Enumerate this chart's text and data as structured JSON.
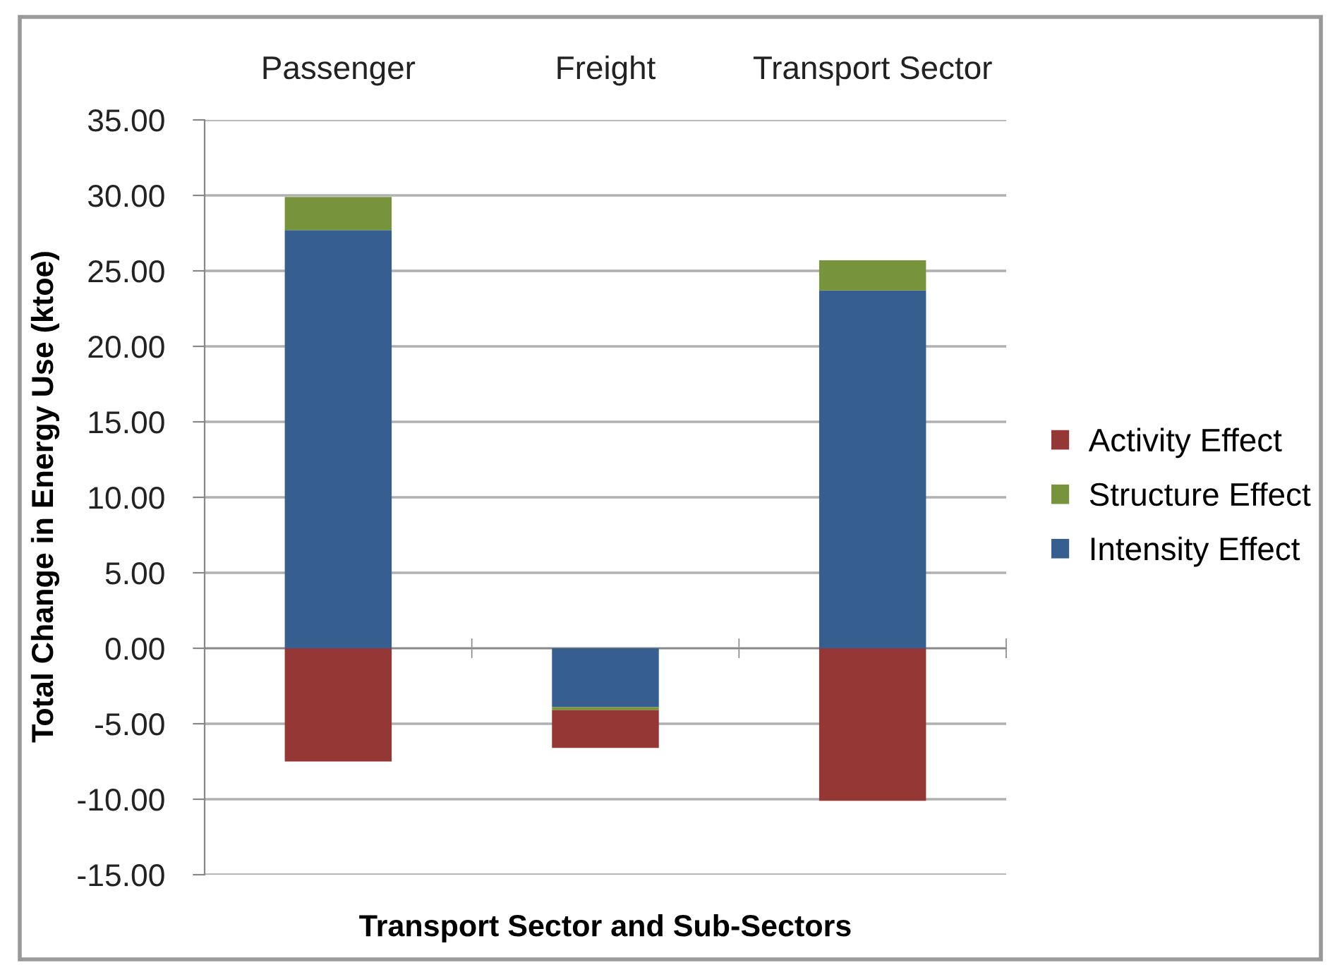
{
  "chart_data": {
    "type": "bar",
    "stacked": true,
    "xlabel": "Transport Sector and Sub-Sectors",
    "ylabel": "Total Change in Energy Use (ktoe)",
    "categories": [
      "Passenger",
      "Freight",
      "Transport Sector"
    ],
    "series": [
      {
        "name": "Intensity Effect",
        "color": "#365e8f",
        "values": [
          27.7,
          -3.9,
          23.7
        ]
      },
      {
        "name": "Structure Effect",
        "color": "#77933c",
        "values": [
          2.2,
          -0.2,
          2.0
        ]
      },
      {
        "name": "Activity Effect",
        "color": "#953735",
        "values": [
          -7.5,
          -2.5,
          -10.1
        ]
      }
    ],
    "ylim": [
      -15,
      35
    ],
    "yticks": [
      {
        "value": -15,
        "label": "-15.00"
      },
      {
        "value": -10,
        "label": "-10.00"
      },
      {
        "value": -5,
        "label": "-5.00"
      },
      {
        "value": 0,
        "label": "0.00"
      },
      {
        "value": 5,
        "label": "5.00"
      },
      {
        "value": 10,
        "label": "10.00"
      },
      {
        "value": 15,
        "label": "15.00"
      },
      {
        "value": 20,
        "label": "20.00"
      },
      {
        "value": 25,
        "label": "25.00"
      },
      {
        "value": 30,
        "label": "30.00"
      },
      {
        "value": 35,
        "label": "35.00"
      }
    ],
    "grid": "y",
    "legend": "right"
  }
}
